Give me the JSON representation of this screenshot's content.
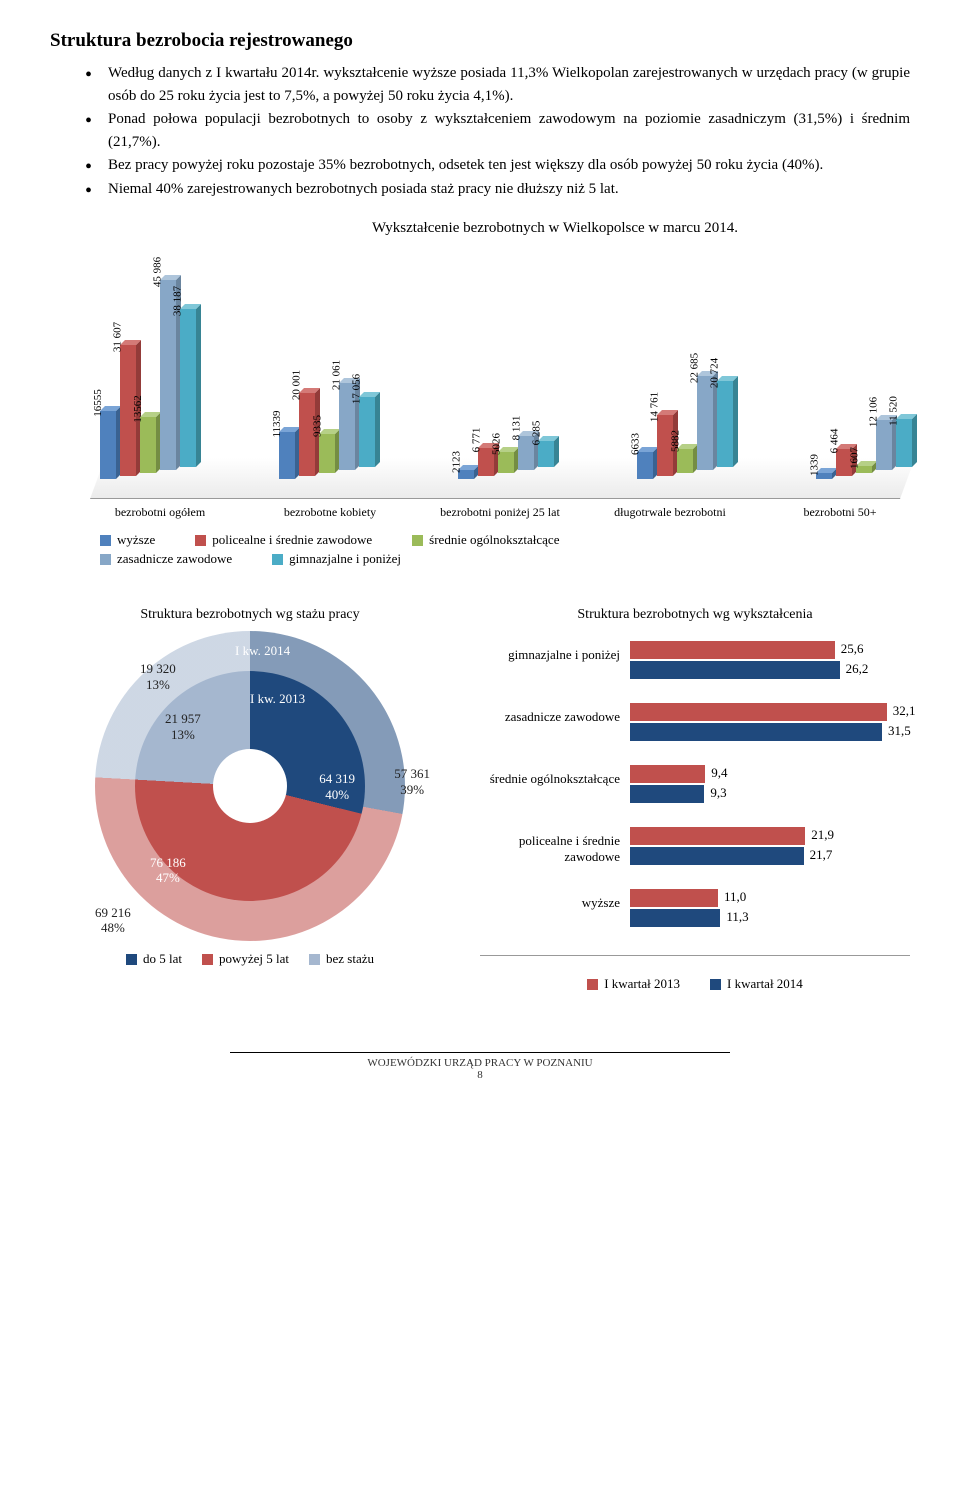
{
  "section_title": "Struktura bezrobocia rejestrowanego",
  "bullets": [
    "Według danych z I kwartału 2014r. wykształcenie wyższe posiada 11,3% Wielkopolan zarejestrowanych w urzędach pracy (w grupie osób do 25 roku życia jest to 7,5%, a powyżej 50 roku życia 4,1%).",
    "Ponad połowa populacji bezrobotnych to osoby z wykształceniem zawodowym na poziomie zasadniczym (31,5%) i średnim (21,7%).",
    "Bez pracy powyżej roku pozostaje 35% bezrobotnych, odsetek ten jest większy dla osób powyżej 50 roku życia (40%).",
    "Niemal 40% zarejestrowanych bezrobotnych posiada staż pracy nie dłuższy niż 5 lat."
  ],
  "chart1": {
    "title": "Wykształcenie bezrobotnych w Wielkopolsce w marcu 2014.",
    "series_colors": [
      "#4f81bd",
      "#c0504d",
      "#9bbb59",
      "#87a7c7",
      "#4bacc6"
    ],
    "series_colors_light": [
      "#7aa4d6",
      "#d47a77",
      "#b6d087",
      "#aec5db",
      "#7fc7d8"
    ],
    "series_colors_dark": [
      "#3a6291",
      "#933b39",
      "#748d43",
      "#6a859f",
      "#378494"
    ],
    "series_labels": [
      "wyższe",
      "policealne i średnie zawodowe",
      "średnie ogólnokształcące",
      "zasadnicze zawodowe",
      "gimnazjalne i poniżej"
    ],
    "max_value": 46000,
    "categories": [
      "bezrobotni ogółem",
      "bezrobotne kobiety",
      "bezrobotni poniżej 25 lat",
      "długotrwale bezrobotni",
      "bezrobotni 50+"
    ],
    "data": [
      [
        16555,
        31607,
        13562,
        45986,
        38187
      ],
      [
        11339,
        20001,
        9335,
        21061,
        17056
      ],
      [
        2123,
        6771,
        5026,
        8131,
        6285
      ],
      [
        6633,
        14761,
        5882,
        22685,
        20724
      ],
      [
        1339,
        6464,
        1607,
        12106,
        11520
      ]
    ],
    "data_labels": [
      [
        "16555",
        "31 607",
        "13562",
        "45 986",
        "38 187"
      ],
      [
        "11339",
        "20 001",
        "9335",
        "21 061",
        "17 056"
      ],
      [
        "2123",
        "6 771",
        "5026",
        "8 131",
        "6 285"
      ],
      [
        "6633",
        "14 761",
        "5882",
        "22 685",
        "20 724"
      ],
      [
        "1339",
        "6 464",
        "1607",
        "12 106",
        "11 520"
      ]
    ]
  },
  "pie": {
    "title": "Struktura bezrobotnych wg stażu pracy",
    "outer": {
      "year": "I kw. 2014",
      "slices": [
        39,
        48,
        13
      ],
      "labels": [
        "57 361 39%",
        "69 216 48%",
        "19 320 13%"
      ]
    },
    "inner": {
      "year": "I kw. 2013",
      "slices": [
        40,
        47,
        13
      ],
      "labels": [
        "64 319 40%",
        "76 186 47%",
        "21 957 13%"
      ]
    },
    "colors": [
      "#1f497d",
      "#c0504d",
      "#a5b7cf"
    ],
    "legend": [
      "do 5 lat",
      "powyżej 5 lat",
      "bez stażu"
    ]
  },
  "hbar": {
    "title": "Struktura bezrobotnych wg wykształcenia",
    "categories": [
      "gimnazjalne i poniżej",
      "zasadnicze zawodowe",
      "średnie ogólnokształcące",
      "policealne i średnie zawodowe",
      "wyższe"
    ],
    "s2013": [
      25.6,
      32.1,
      9.4,
      21.9,
      11.0
    ],
    "s2014": [
      26.2,
      31.5,
      9.3,
      21.7,
      11.3
    ],
    "s2013_labels": [
      "25,6",
      "32,1",
      "9,4",
      "21,9",
      "11,0"
    ],
    "s2014_labels": [
      "26,2",
      "31,5",
      "9,3",
      "21,7",
      "11,3"
    ],
    "max": 35,
    "colors": [
      "#c0504d",
      "#1f497d"
    ],
    "legend": [
      "I kwartał 2013",
      "I kwartał 2014"
    ]
  },
  "footer": {
    "org": "WOJEWÓDZKI URZĄD PRACY W POZNANIU",
    "page": "8"
  }
}
